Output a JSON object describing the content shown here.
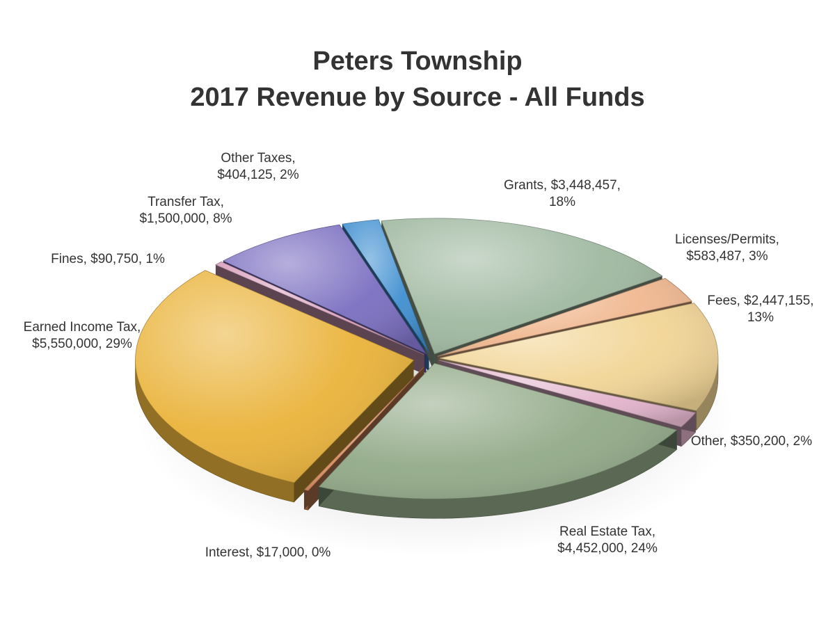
{
  "chart_data": {
    "type": "pie",
    "title": "Peters Township",
    "subtitle": "2017 Revenue by Source - All Funds",
    "slices": [
      {
        "label": "Grants",
        "value": 3448457,
        "percent": "18%",
        "text_line1": "Grants, $3,448,457,",
        "text_line2": "18%",
        "color": "#9fb8a0"
      },
      {
        "label": "Licenses/Permits",
        "value": 583487,
        "percent": "3%",
        "text_line1": "Licenses/Permits,",
        "text_line2": "$583,487, 3%",
        "color": "#f0b890"
      },
      {
        "label": "Fees",
        "value": 2447155,
        "percent": "13%",
        "text_line1": "Fees, $2,447,155,",
        "text_line2": "13%",
        "color": "#f2d596"
      },
      {
        "label": "Other",
        "value": 350200,
        "percent": "2%",
        "text_line1": "Other, $350,200, 2%",
        "text_line2": "",
        "color": "#e2b4cc"
      },
      {
        "label": "Real Estate Tax",
        "value": 4452000,
        "percent": "24%",
        "text_line1": "Real Estate Tax,",
        "text_line2": "$4,452,000, 24%",
        "color": "#92aa88"
      },
      {
        "label": "Interest",
        "value": 17000,
        "percent": "0%",
        "text_line1": "Interest, $17,000, 0%",
        "text_line2": "",
        "color": "#d98d5e"
      },
      {
        "label": "Earned Income Tax",
        "value": 5550000,
        "percent": "29%",
        "text_line1": "Earned Income Tax,",
        "text_line2": "$5,550,000, 29%",
        "color": "#eab33a"
      },
      {
        "label": "Fines",
        "value": 90750,
        "percent": "1%",
        "text_line1": "Fines, $90,750, 1%",
        "text_line2": "",
        "color": "#d89fbd"
      },
      {
        "label": "Transfer Tax",
        "value": 1500000,
        "percent": "8%",
        "text_line1": "Transfer Tax,",
        "text_line2": "$1,500,000, 8%",
        "color": "#7a6ec0"
      },
      {
        "label": "Other Taxes",
        "value": 404125,
        "percent": "2%",
        "text_line1": "Other Taxes,",
        "text_line2": "$404,125, 2%",
        "color": "#3f8fd0"
      }
    ]
  }
}
